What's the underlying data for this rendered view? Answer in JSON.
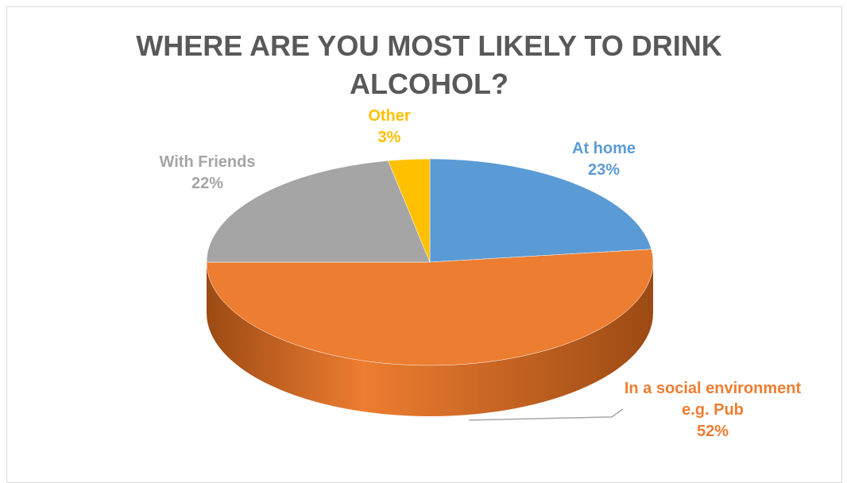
{
  "chart_data": {
    "type": "pie",
    "title": "WHERE ARE YOU MOST LIKELY TO DRINK ALCOHOL?",
    "style": "3d",
    "legend": "none",
    "slices": [
      {
        "label": "At home",
        "value": 23,
        "display": "23%",
        "color": "#5b9bd5",
        "side_color": "#2e5f8f"
      },
      {
        "label": "In a social environment e.g. Pub",
        "value": 52,
        "display": "52%",
        "color": "#ed7d31",
        "side_color": "#9c4a14"
      },
      {
        "label": "With Friends",
        "value": 22,
        "display": "22%",
        "color": "#a5a5a5",
        "side_color": "#6b6b6b"
      },
      {
        "label": "Other",
        "value": 3,
        "display": "3%",
        "color": "#ffc000",
        "side_color": "#b38600"
      }
    ]
  }
}
